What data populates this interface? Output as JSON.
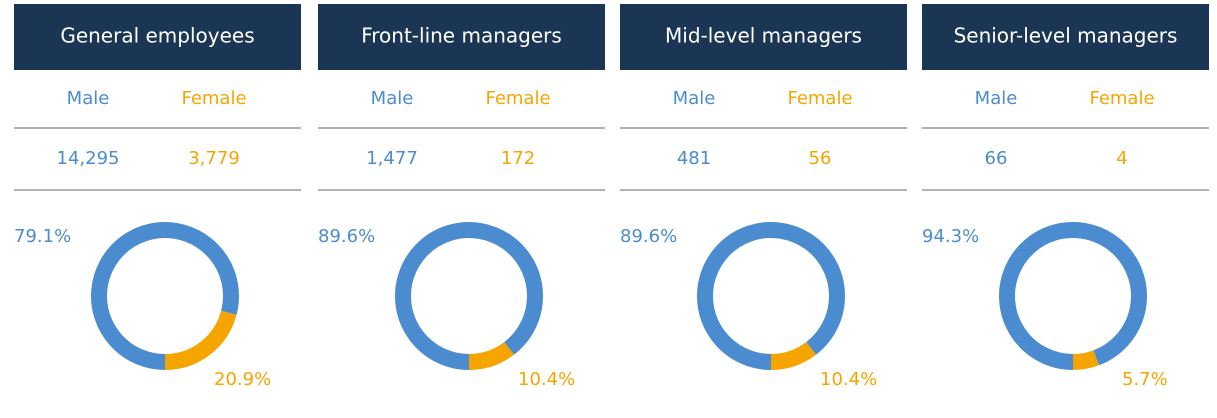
{
  "chart_data": [
    {
      "type": "donut",
      "title": "General employees",
      "categories": [
        "Male",
        "Female"
      ],
      "counts": [
        "14,295",
        "3,779"
      ],
      "values": [
        79.1,
        20.9
      ],
      "value_labels": [
        "79.1%",
        "20.9%"
      ],
      "colors": [
        "#4a8ccf",
        "#f6a500"
      ]
    },
    {
      "type": "donut",
      "title": "Front-line managers",
      "categories": [
        "Male",
        "Female"
      ],
      "counts": [
        "1,477",
        "172"
      ],
      "values": [
        89.6,
        10.4
      ],
      "value_labels": [
        "89.6%",
        "10.4%"
      ],
      "colors": [
        "#4a8ccf",
        "#f6a500"
      ]
    },
    {
      "type": "donut",
      "title": "Mid-level managers",
      "categories": [
        "Male",
        "Female"
      ],
      "counts": [
        "481",
        "56"
      ],
      "values": [
        89.6,
        10.4
      ],
      "value_labels": [
        "89.6%",
        "10.4%"
      ],
      "colors": [
        "#4a8ccf",
        "#f6a500"
      ]
    },
    {
      "type": "donut",
      "title": "Senior-level managers",
      "categories": [
        "Male",
        "Female"
      ],
      "counts": [
        "66",
        "4"
      ],
      "values": [
        94.3,
        5.7
      ],
      "value_labels": [
        "94.3%",
        "5.7%"
      ],
      "colors": [
        "#4a8ccf",
        "#f6a500"
      ]
    }
  ]
}
